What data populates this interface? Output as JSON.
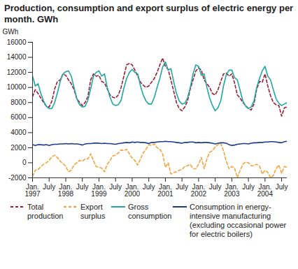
{
  "chart_data": {
    "type": "line",
    "title": "Production, consumption and export surplus of electric energy per month. GWh",
    "y_label": "GWh",
    "categories": [
      "Jan.\n1997",
      null,
      null,
      null,
      null,
      null,
      "July",
      null,
      null,
      null,
      null,
      null,
      "Jan.\n1998",
      null,
      null,
      null,
      null,
      null,
      "July",
      null,
      null,
      null,
      null,
      null,
      "Jan.\n1999",
      null,
      null,
      null,
      null,
      null,
      "July",
      null,
      null,
      null,
      null,
      null,
      "Jan.\n2000",
      null,
      null,
      null,
      null,
      null,
      "July",
      null,
      null,
      null,
      null,
      null,
      "Jan.\n2001",
      null,
      null,
      null,
      null,
      null,
      "July",
      null,
      null,
      null,
      null,
      null,
      "Jan.\n2002",
      null,
      null,
      null,
      null,
      null,
      "July",
      null,
      null,
      null,
      null,
      null,
      "Jan.\n2003",
      null,
      null,
      null,
      null,
      null,
      "July",
      null,
      null,
      null,
      null,
      null,
      "Jan.\n2004",
      null,
      null,
      null,
      null,
      null,
      "July",
      null,
      null
    ],
    "ylim": [
      -2000,
      16000
    ],
    "yticks": [
      -2000,
      0,
      2000,
      4000,
      6000,
      8000,
      10000,
      12000,
      14000,
      16000
    ],
    "grid": false,
    "legend": "bottom",
    "series": [
      {
        "name": "Total production",
        "color": "#9b1b30",
        "line_style": "dashed",
        "values": [
          8800,
          9700,
          9200,
          8600,
          8000,
          7500,
          7400,
          8200,
          9800,
          10800,
          11000,
          11800,
          11600,
          11000,
          10500,
          9700,
          8500,
          8000,
          7600,
          8000,
          8800,
          11000,
          11800,
          11500,
          11600,
          10800,
          10600,
          9800,
          9000,
          8700,
          8600,
          9000,
          10000,
          11500,
          13000,
          13200,
          13000,
          12300,
          11500,
          10700,
          10300,
          10000,
          10200,
          10700,
          11200,
          12000,
          13000,
          13900,
          12800,
          12400,
          11000,
          9500,
          8000,
          7200,
          6900,
          7400,
          8200,
          9800,
          11000,
          12200,
          12600,
          12300,
          11000,
          10500,
          10000,
          9200,
          9000,
          9700,
          10800,
          11800,
          11900,
          11500,
          11800,
          10600,
          9000,
          8600,
          8000,
          7600,
          7200,
          7000,
          7800,
          9800,
          10800,
          10700,
          11800,
          10200,
          8900,
          8000,
          7700,
          7600,
          6200,
          7300,
          7400
        ]
      },
      {
        "name": "Export surplus",
        "color": "#f5a33c",
        "line_style": "dashed",
        "values": [
          -1800,
          -1000,
          -900,
          -500,
          -200,
          0,
          300,
          800,
          1000,
          700,
          200,
          -100,
          -500,
          -1200,
          -1000,
          -300,
          0,
          300,
          200,
          500,
          500,
          1200,
          300,
          -500,
          -600,
          -700,
          -1200,
          -200,
          300,
          900,
          1000,
          1300,
          1700,
          1600,
          1800,
          1200,
          600,
          300,
          -300,
          500,
          1300,
          1800,
          2400,
          2300,
          2500,
          2000,
          1800,
          1200,
          -600,
          0,
          -1500,
          -1300,
          -1200,
          -1000,
          -900,
          -500,
          -400,
          -200,
          -800,
          -800,
          -200,
          700,
          -800,
          500,
          1400,
          1600,
          2100,
          2400,
          2600,
          1600,
          200,
          -800,
          -500,
          -700,
          -2000,
          -1000,
          -200,
          100,
          0,
          -400,
          -400,
          -200,
          -400,
          -1500,
          -1000,
          -1300,
          -2000,
          -1700,
          -800,
          -300,
          -1400,
          -500,
          -600
        ]
      },
      {
        "name": "Gross consumption",
        "color": "#1fa6a6",
        "line_style": "solid",
        "values": [
          11500,
          10200,
          10500,
          9200,
          8200,
          7500,
          7200,
          7200,
          8000,
          9300,
          10800,
          11800,
          12100,
          12200,
          11500,
          10000,
          8500,
          7700,
          7400,
          7500,
          8300,
          9800,
          11500,
          12000,
          12200,
          11500,
          11800,
          10000,
          8700,
          7800,
          7600,
          7700,
          8300,
          9900,
          11200,
          12000,
          12400,
          12000,
          11800,
          10200,
          9000,
          8200,
          7800,
          7800,
          8700,
          10000,
          11200,
          12700,
          13400,
          12300,
          12500,
          10800,
          9200,
          8200,
          7800,
          7900,
          8600,
          10000,
          11800,
          13000,
          12800,
          11600,
          11800,
          10000,
          8600,
          7600,
          6900,
          7300,
          8200,
          10200,
          11700,
          12300,
          12300,
          11300,
          11000,
          9600,
          8200,
          7500,
          7200,
          7400,
          8200,
          10000,
          11200,
          12200,
          12800,
          11500,
          11000,
          9700,
          8500,
          7900,
          7600,
          7800,
          8000
        ]
      },
      {
        "name": "Consumption in energy-intensive manufacturing (excluding occasional power for electric boilers)",
        "color": "#1c3a8f",
        "line_style": "solid",
        "values": [
          2400,
          2300,
          2400,
          2400,
          2350,
          2400,
          2300,
          2400,
          2450,
          2450,
          2500,
          2500,
          2550,
          2500,
          2550,
          2500,
          2500,
          2450,
          2350,
          2500,
          2550,
          2550,
          2600,
          2600,
          2600,
          2550,
          2600,
          2550,
          2550,
          2500,
          2450,
          2550,
          2600,
          2650,
          2700,
          2650,
          2750,
          2700,
          2750,
          2700,
          2700,
          2650,
          2550,
          2700,
          2700,
          2750,
          2800,
          2800,
          2850,
          2800,
          2800,
          2750,
          2700,
          2650,
          2600,
          2700,
          2700,
          2750,
          2750,
          2650,
          2700,
          2650,
          2700,
          2700,
          2650,
          2600,
          2500,
          2600,
          2650,
          2650,
          2600,
          2400,
          2300,
          2350,
          2450,
          2500,
          2550,
          2550,
          2500,
          2600,
          2650,
          2650,
          2700,
          2700,
          2750,
          2750,
          2800,
          2800,
          2750,
          2700,
          2650,
          2800,
          2850
        ]
      }
    ]
  }
}
